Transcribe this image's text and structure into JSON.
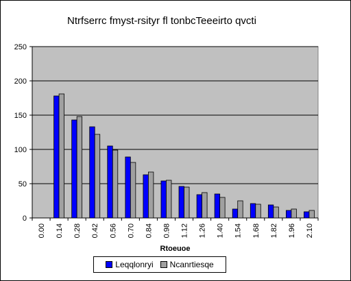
{
  "chart_data": {
    "type": "bar",
    "title": "Ntrfserrc fmyst-rsityr fl tonbcTeeeirto qvcti",
    "xlabel": "Rtoeuoe",
    "ylabel": "",
    "categories": [
      "0.00",
      "0.14",
      "0.28",
      "0.42",
      "0.56",
      "0.70",
      "0.84",
      "0.98",
      "1.12",
      "1.26",
      "1.40",
      "1.54",
      "1.68",
      "1.82",
      "1.96",
      "2.10"
    ],
    "series": [
      {
        "name": "Leqqlonryi",
        "color": "#0000ff",
        "values": [
          0,
          178,
          143,
          133,
          105,
          89,
          63,
          54,
          46,
          34,
          35,
          13,
          21,
          19,
          11,
          9
        ]
      },
      {
        "name": "Ncanrtiesqe",
        "color": "#a0a0a0",
        "values": [
          0,
          181,
          148,
          122,
          99,
          81,
          67,
          55,
          45,
          37,
          30,
          25,
          20,
          16,
          13,
          11
        ]
      }
    ],
    "ylim": [
      0,
      250
    ],
    "yticks": [
      0,
      50,
      100,
      150,
      200,
      250
    ],
    "grid": true,
    "plot_background": "#c0c0c0",
    "legend_position": "bottom"
  }
}
